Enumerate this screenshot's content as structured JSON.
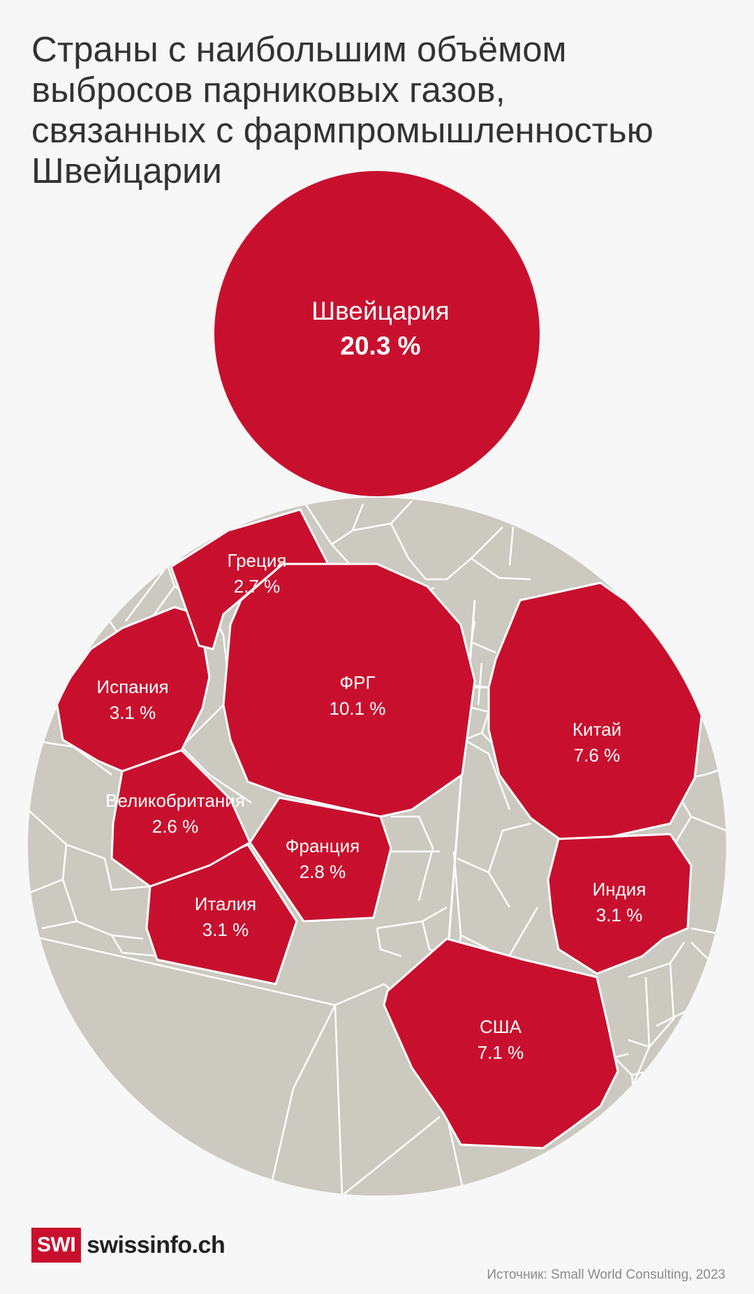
{
  "title_lines": [
    "Страны с наибольшим объёмом",
    "выбросов парниковых газов,",
    "связанных с фармпромышленностью",
    "Швейцарии"
  ],
  "source": "Источник: Small World Consulting, 2023",
  "logo": {
    "mark": "SWI",
    "text": "swissinfo.ch"
  },
  "colors": {
    "highlight": "#c8102e",
    "other": "#ccc9c0",
    "background": "#f7f7f7"
  },
  "chart_data": {
    "type": "voronoi-treemap",
    "unit": "%",
    "series": [
      {
        "label": "Швейцария",
        "value": 20.3,
        "value_label": "20.3 %"
      },
      {
        "label": "ФРГ",
        "value": 10.1,
        "value_label": "10.1 %"
      },
      {
        "label": "Китай",
        "value": 7.6,
        "value_label": "7.6 %"
      },
      {
        "label": "США",
        "value": 7.1,
        "value_label": "7.1 %"
      },
      {
        "label": "Испания",
        "value": 3.1,
        "value_label": "3.1 %"
      },
      {
        "label": "Италия",
        "value": 3.1,
        "value_label": "3.1 %"
      },
      {
        "label": "Индия",
        "value": 3.1,
        "value_label": "3.1 %"
      },
      {
        "label": "Франция",
        "value": 2.8,
        "value_label": "2.8 %"
      },
      {
        "label": "Греция",
        "value": 2.7,
        "value_label": "2.7 %"
      },
      {
        "label": "Великобритания",
        "value": 2.6,
        "value_label": "2.6 %"
      }
    ]
  }
}
